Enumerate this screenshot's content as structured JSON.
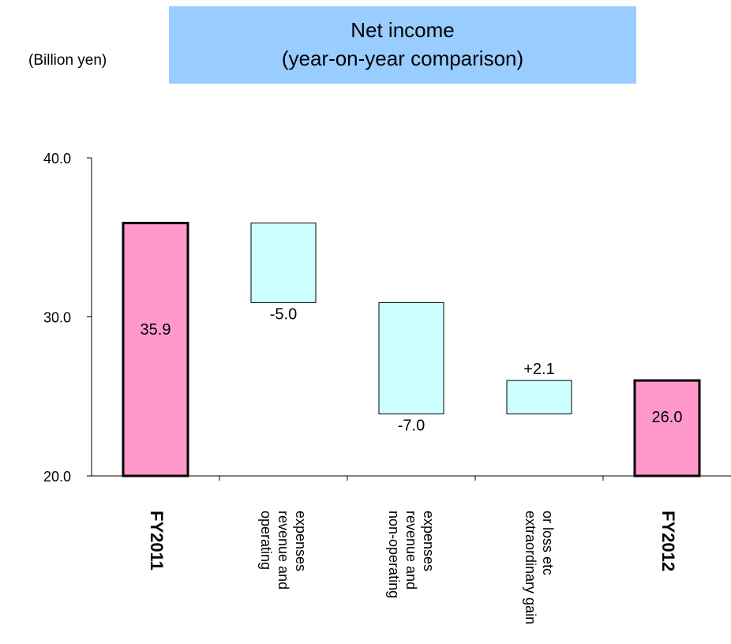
{
  "unit_label": "(Billion yen)",
  "title": {
    "line1": "Net income",
    "line2": "(year-on-year comparison)",
    "background": "#99ccff"
  },
  "chart_data": {
    "type": "bar",
    "subtype": "waterfall",
    "ylim": [
      20,
      40
    ],
    "yticks": [
      "20.0",
      "30.0",
      "40.0"
    ],
    "ytick_values": [
      20,
      30,
      40
    ],
    "grid": false,
    "categories": [
      {
        "label_lines": [
          "FY2011"
        ],
        "bold": true
      },
      {
        "label_lines": [
          "operating",
          "revenue and",
          "expenses"
        ],
        "bold": false
      },
      {
        "label_lines": [
          "non-operating",
          "revenue and",
          "expenses"
        ],
        "bold": false
      },
      {
        "label_lines": [
          "extraordinary gain",
          "or loss etc"
        ],
        "bold": false
      },
      {
        "label_lines": [
          "FY2012"
        ],
        "bold": true
      }
    ],
    "bars": [
      {
        "kind": "total",
        "start": 20,
        "end": 35.9,
        "label": "35.9"
      },
      {
        "kind": "change",
        "start": 35.9,
        "end": 30.9,
        "label": "-5.0"
      },
      {
        "kind": "change",
        "start": 30.9,
        "end": 23.9,
        "label": "-7.0"
      },
      {
        "kind": "change",
        "start": 23.9,
        "end": 26.0,
        "label": "+2.1"
      },
      {
        "kind": "total",
        "start": 20,
        "end": 26.0,
        "label": "26.0"
      }
    ],
    "colors": {
      "total": "#ff99cc",
      "change": "#ccffff"
    }
  }
}
